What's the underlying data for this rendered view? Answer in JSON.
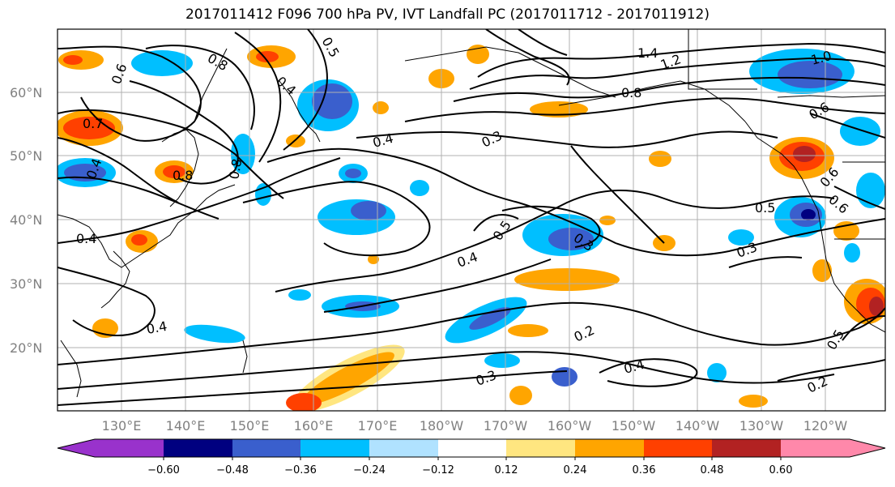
{
  "title": "2017011412 F096 700 hPa PV, IVT Landfall PC (2017011712 - 2017011912)",
  "lat_labels": [
    "60°N",
    "50°N",
    "40°N",
    "30°N",
    "20°N"
  ],
  "lon_labels": [
    "130°E",
    "140°E",
    "150°E",
    "160°E",
    "170°E",
    "180°W",
    "170°W",
    "160°W",
    "150°W",
    "140°W",
    "130°W",
    "120°W"
  ],
  "colorbar": {
    "ticks": [
      "−0.60",
      "−0.48",
      "−0.36",
      "−0.24",
      "−0.12",
      "0.12",
      "0.24",
      "0.36",
      "0.48",
      "0.60"
    ],
    "colors": [
      "#9932cc",
      "#000080",
      "#3a5fcd",
      "#00bfff",
      "#b0e2ff",
      "#ffffff",
      "#ffe680",
      "#ffa500",
      "#ff4000",
      "#b22222",
      "#ff88aa"
    ]
  },
  "contour_labels": [
    "0.7",
    "0.6",
    "0.8",
    "0.4",
    "0.5",
    "0.4",
    "0.3",
    "0.4",
    "0.8",
    "0.8",
    "1.4",
    "1.2",
    "1.0",
    "0.6",
    "0.5",
    "0.3",
    "0.6",
    "0.4",
    "0.3",
    "0.5",
    "0.4",
    "0.2",
    "0.4",
    "0.3",
    "0.2",
    "0.5",
    "0.6",
    "0.4",
    "0.8"
  ],
  "shading_colors": {
    "neg_light": "#b0e2ff",
    "neg_mid": "#00bfff",
    "neg_strong": "#3a5fcd",
    "neg_max": "#000080",
    "pos_light": "#ffe680",
    "pos_mid": "#ffa500",
    "pos_strong": "#ff4000",
    "pos_max": "#b22222"
  }
}
